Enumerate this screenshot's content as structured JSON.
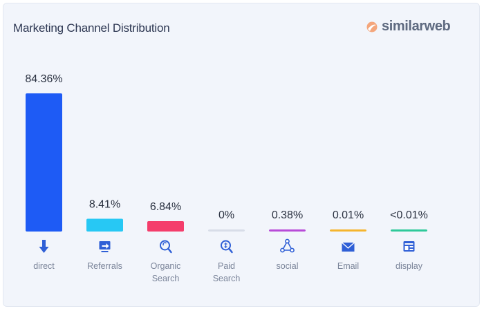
{
  "brand": {
    "name": "similarweb",
    "logo_icon": "similarweb-logo-icon"
  },
  "chart_data": {
    "type": "bar",
    "title": "Marketing Channel Distribution",
    "xlabel": "",
    "ylabel": "",
    "ylim": [
      0,
      100
    ],
    "grid": false,
    "legend": "none",
    "categories": [
      {
        "name": "direct",
        "lines": [
          "direct"
        ],
        "value": 84.36,
        "label": "84.36%",
        "color": "#1e5bf5",
        "icon": "arrow-down-icon"
      },
      {
        "name": "referrals",
        "lines": [
          "Referrals"
        ],
        "value": 8.41,
        "label": "8.41%",
        "color": "#27c8f4",
        "icon": "referrals-monitor-icon"
      },
      {
        "name": "organic-search",
        "lines": [
          "Organic",
          "Search"
        ],
        "value": 6.84,
        "label": "6.84%",
        "color": "#f43d6b",
        "icon": "magnifier-icon"
      },
      {
        "name": "paid-search",
        "lines": [
          "Paid",
          "Search"
        ],
        "value": 0,
        "label": "0%",
        "color": "#d8dde8",
        "icon": "paid-search-icon"
      },
      {
        "name": "social",
        "lines": [
          "social"
        ],
        "value": 0.38,
        "label": "0.38%",
        "color": "#b84bd8",
        "icon": "social-network-icon"
      },
      {
        "name": "email",
        "lines": [
          "Email"
        ],
        "value": 0.01,
        "label": "0.01%",
        "color": "#f5b52e",
        "icon": "envelope-icon"
      },
      {
        "name": "display",
        "lines": [
          "display"
        ],
        "value": 0.009,
        "label": "<0.01%",
        "color": "#2fc99a",
        "icon": "display-ad-icon"
      }
    ]
  }
}
